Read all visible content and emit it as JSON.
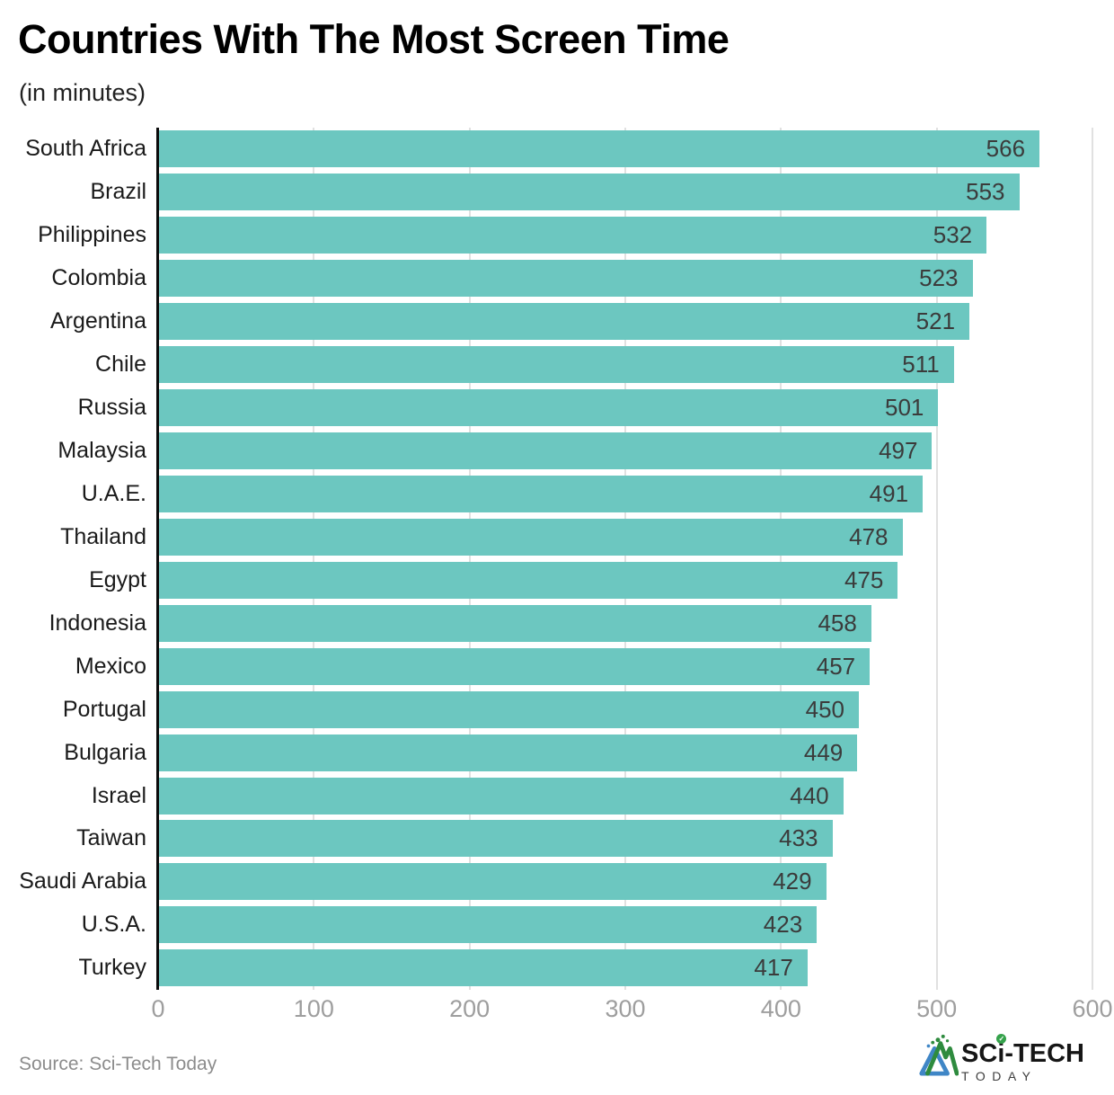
{
  "title": "Countries With The Most Screen Time",
  "subtitle": "(in minutes)",
  "source": "Source: Sci-Tech Today",
  "logo": {
    "part1": "SC",
    "part2": "i",
    "part3": "-TECH",
    "bottom": "TODAY"
  },
  "chart_data": {
    "type": "bar",
    "orientation": "horizontal",
    "title": "Countries With The Most Screen Time",
    "subtitle": "(in minutes)",
    "categories": [
      "South Africa",
      "Brazil",
      "Philippines",
      "Colombia",
      "Argentina",
      "Chile",
      "Russia",
      "Malaysia",
      "U.A.E.",
      "Thailand",
      "Egypt",
      "Indonesia",
      "Mexico",
      "Portugal",
      "Bulgaria",
      "Israel",
      "Taiwan",
      "Saudi Arabia",
      "U.S.A.",
      "Turkey"
    ],
    "values": [
      566,
      553,
      532,
      523,
      521,
      511,
      501,
      497,
      491,
      478,
      475,
      458,
      457,
      450,
      449,
      440,
      433,
      429,
      423,
      417
    ],
    "xlabel": "",
    "ylabel": "",
    "xlim": [
      0,
      600
    ],
    "xticks": [
      0,
      100,
      200,
      300,
      400,
      500,
      600
    ],
    "grid": "vertical",
    "legend": "none",
    "bar_color": "#6cc7c0",
    "value_label_color": "#3b3b3b",
    "value_labels": "inside-end"
  }
}
